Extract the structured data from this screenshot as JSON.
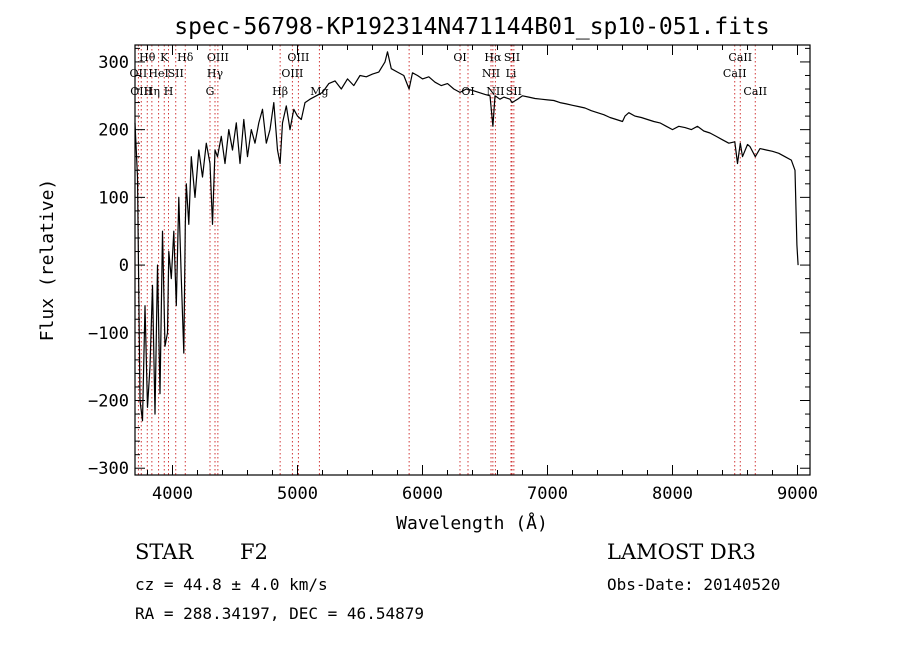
{
  "chart_data": {
    "type": "line",
    "title": "spec-56798-KP192314N471144B01_sp10-051.fits",
    "xlabel": "Wavelength (Å)",
    "ylabel": "Flux (relative)",
    "xlim": [
      3700,
      9100
    ],
    "ylim": [
      -310,
      325
    ],
    "x_ticks": [
      4000,
      5000,
      6000,
      7000,
      8000,
      9000
    ],
    "y_ticks": [
      -300,
      -200,
      -100,
      0,
      100,
      200,
      300
    ],
    "grid": false,
    "series": [
      {
        "name": "flux",
        "x": [
          3700,
          3720,
          3740,
          3760,
          3780,
          3800,
          3820,
          3840,
          3860,
          3880,
          3900,
          3920,
          3940,
          3960,
          3970,
          3990,
          4010,
          4030,
          4050,
          4070,
          4090,
          4102,
          4110,
          4130,
          4150,
          4180,
          4210,
          4240,
          4270,
          4300,
          4320,
          4340,
          4360,
          4390,
          4420,
          4450,
          4480,
          4510,
          4540,
          4570,
          4600,
          4630,
          4660,
          4690,
          4720,
          4750,
          4780,
          4810,
          4840,
          4861,
          4880,
          4910,
          4940,
          4970,
          5000,
          5030,
          5060,
          5100,
          5150,
          5200,
          5250,
          5300,
          5350,
          5400,
          5450,
          5500,
          5550,
          5600,
          5650,
          5700,
          5720,
          5750,
          5800,
          5850,
          5893,
          5920,
          5960,
          6000,
          6050,
          6100,
          6150,
          6200,
          6250,
          6300,
          6350,
          6400,
          6450,
          6500,
          6540,
          6563,
          6580,
          6620,
          6650,
          6700,
          6716,
          6760,
          6800,
          6850,
          6900,
          6950,
          7000,
          7050,
          7100,
          7150,
          7200,
          7250,
          7300,
          7350,
          7400,
          7450,
          7500,
          7550,
          7600,
          7620,
          7650,
          7700,
          7750,
          7800,
          7850,
          7900,
          7950,
          8000,
          8050,
          8100,
          8150,
          8200,
          8250,
          8300,
          8350,
          8400,
          8450,
          8498,
          8520,
          8542,
          8560,
          8600,
          8620,
          8662,
          8700,
          8750,
          8800,
          8850,
          8900,
          8950,
          8980,
          8995,
          9005
        ],
        "values": [
          210,
          130,
          -200,
          -230,
          -60,
          -210,
          -150,
          -30,
          -220,
          0,
          -190,
          50,
          -120,
          -100,
          20,
          -20,
          50,
          -60,
          100,
          -20,
          -130,
          60,
          120,
          60,
          160,
          100,
          170,
          130,
          180,
          150,
          60,
          170,
          160,
          190,
          150,
          200,
          170,
          210,
          150,
          215,
          160,
          200,
          180,
          210,
          230,
          180,
          200,
          240,
          170,
          150,
          210,
          235,
          200,
          230,
          220,
          215,
          240,
          245,
          250,
          255,
          268,
          272,
          260,
          275,
          265,
          280,
          278,
          282,
          285,
          300,
          315,
          290,
          285,
          280,
          260,
          284,
          280,
          275,
          278,
          270,
          265,
          268,
          260,
          255,
          260,
          258,
          255,
          252,
          250,
          205,
          250,
          245,
          248,
          245,
          240,
          245,
          250,
          248,
          246,
          245,
          244,
          243,
          240,
          238,
          236,
          234,
          232,
          228,
          225,
          222,
          218,
          215,
          212,
          220,
          225,
          220,
          218,
          215,
          212,
          210,
          205,
          200,
          205,
          203,
          200,
          205,
          198,
          195,
          190,
          185,
          180,
          182,
          150,
          180,
          160,
          178,
          175,
          160,
          172,
          170,
          168,
          165,
          160,
          155,
          140,
          30,
          0
        ]
      }
    ],
    "line_markers": [
      {
        "wavelength": 3727,
        "label": "OII",
        "row": 2
      },
      {
        "wavelength": 3750,
        "label": "OIII",
        "row": 3
      },
      {
        "wavelength": 3798,
        "label": "Hθ",
        "row": 1
      },
      {
        "wavelength": 3835,
        "label": "Hη",
        "row": 3
      },
      {
        "wavelength": 3889,
        "label": "HeI",
        "row": 2
      },
      {
        "wavelength": 3934,
        "label": "K",
        "row": 1
      },
      {
        "wavelength": 3968,
        "label": "H",
        "row": 3
      },
      {
        "wavelength": 4026,
        "label": "SII",
        "row": 2
      },
      {
        "wavelength": 4102,
        "label": "Hδ",
        "row": 1
      },
      {
        "wavelength": 4300,
        "label": "G",
        "row": 3
      },
      {
        "wavelength": 4340,
        "label": "Hγ",
        "row": 2
      },
      {
        "wavelength": 4363,
        "label": "OIII",
        "row": 1
      },
      {
        "wavelength": 4861,
        "label": "Hβ",
        "row": 3
      },
      {
        "wavelength": 4959,
        "label": "OIII",
        "row": 2
      },
      {
        "wavelength": 5007,
        "label": "OIII",
        "row": 1
      },
      {
        "wavelength": 5175,
        "label": "Mg",
        "row": 3
      },
      {
        "wavelength": 5893,
        "label": "",
        "row": 0
      },
      {
        "wavelength": 6300,
        "label": "OI",
        "row": 1
      },
      {
        "wavelength": 6364,
        "label": "OI",
        "row": 3
      },
      {
        "wavelength": 6548,
        "label": "NII",
        "row": 2
      },
      {
        "wavelength": 6563,
        "label": "Hα",
        "row": 1
      },
      {
        "wavelength": 6583,
        "label": "NII",
        "row": 3
      },
      {
        "wavelength": 6708,
        "label": "Li",
        "row": 2
      },
      {
        "wavelength": 6716,
        "label": "SII",
        "row": 1
      },
      {
        "wavelength": 6731,
        "label": "SII",
        "row": 3
      },
      {
        "wavelength": 8498,
        "label": "CaII",
        "row": 2
      },
      {
        "wavelength": 8542,
        "label": "CaII",
        "row": 1
      },
      {
        "wavelength": 8662,
        "label": "CaII",
        "row": 3
      }
    ]
  },
  "info": {
    "object_class": "STAR",
    "subclass": "F2",
    "survey": "LAMOST DR3",
    "cz": "cz = 44.8 ± 4.0 km/s",
    "obs_date": "Obs-Date: 20140520",
    "coords": "RA = 288.34197, DEC =  46.54879"
  },
  "colors": {
    "line": "#000000",
    "marker": "#cc2222",
    "axes": "#000000"
  }
}
